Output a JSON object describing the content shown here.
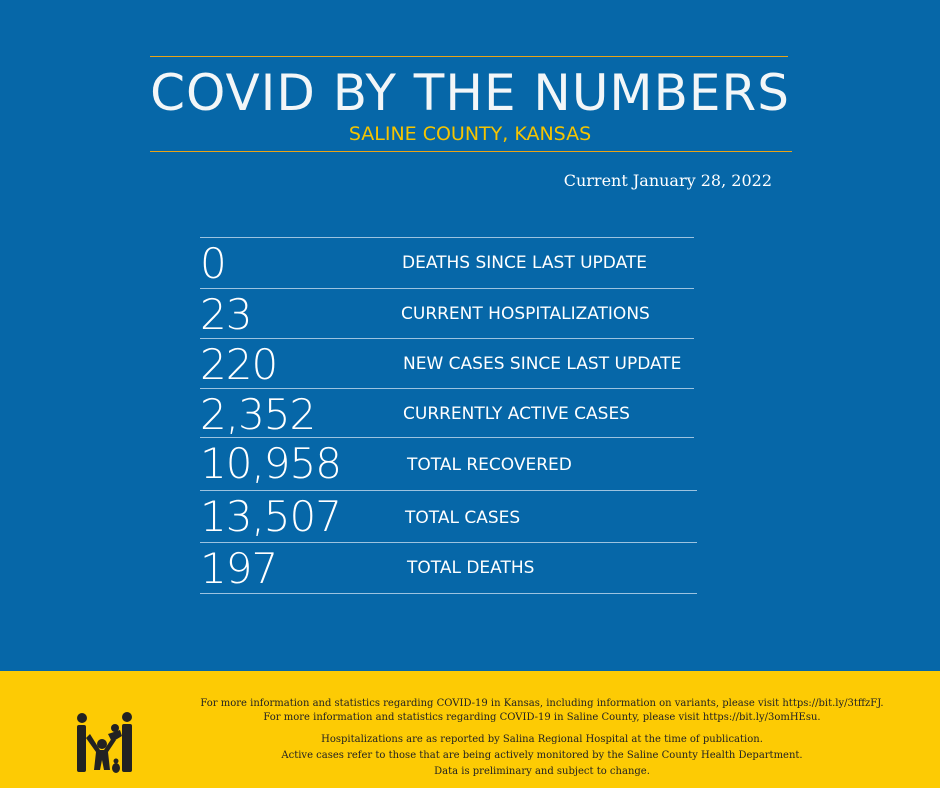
{
  "header": {
    "title": "COVID BY THE NUMBERS",
    "subtitle": "SALINE COUNTY, KANSAS",
    "date": "Current January 28, 2022"
  },
  "stats": [
    {
      "value": "0",
      "label": "DEATHS SINCE LAST UPDATE"
    },
    {
      "value": "23",
      "label": "CURRENT HOSPITALIZATIONS"
    },
    {
      "value": "220",
      "label": "NEW CASES SINCE LAST UPDATE"
    },
    {
      "value": "2,352",
      "label": "CURRENTLY ACTIVE CASES"
    },
    {
      "value": "10,958",
      "label": "TOTAL RECOVERED"
    },
    {
      "value": "13,507",
      "label": "TOTAL CASES"
    },
    {
      "value": "197",
      "label": "TOTAL DEATHS"
    }
  ],
  "footer": {
    "line1": "For more information and statistics regarding COVID-19 in Kansas, including information on variants, please visit https://bit.ly/3tffzFJ.",
    "line2": "For more information and statistics regarding COVID-19 in Saline County, please visit  https://bit.ly/3omHEsu.",
    "line3": "Hospitalizations are as reported by Salina Regional Hospital at the time of publication.",
    "line4": "Active cases refer to those that are being actively monitored by the Saline County Health Department.",
    "line5": "Data is preliminary and subject to change.",
    "logo_icon": "family-icon"
  },
  "colors": {
    "background": "#0667a8",
    "accent": "#f5c400",
    "footer": "#fdcb04",
    "rule": "#e8a317"
  }
}
